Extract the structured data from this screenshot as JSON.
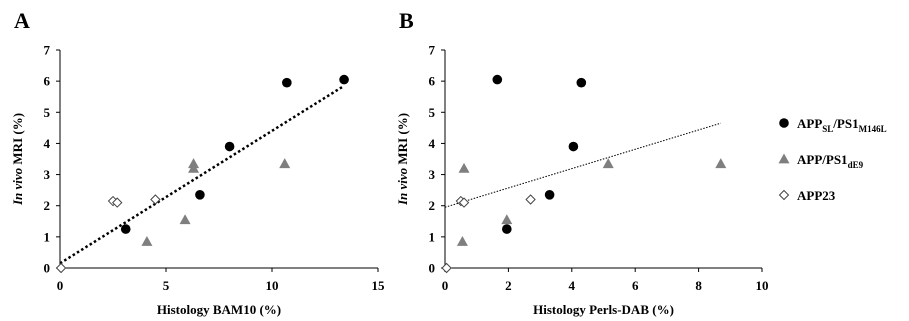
{
  "colors": {
    "circle": "#000000",
    "triangle": "#7f7f7f",
    "diamond": "#ffffff",
    "axis": "#000000"
  },
  "legend": [
    {
      "marker": "circle",
      "main": "APP",
      "sub1": "SL",
      "mid": "/PS1",
      "sub2": "M146L"
    },
    {
      "marker": "triangle",
      "main": "APP/PS1",
      "sub1": "dE9",
      "mid": "",
      "sub2": ""
    },
    {
      "marker": "diamond",
      "main": "APP23",
      "sub1": "",
      "mid": "",
      "sub2": ""
    }
  ],
  "chart_data": [
    {
      "type": "scatter",
      "panel_label": "A",
      "xlabel": "Histology BAM10 (%)",
      "ylabel_italic": "In vivo",
      "ylabel_rest": " MRI (%)",
      "xlim": [
        0,
        15
      ],
      "ylim": [
        0,
        7
      ],
      "xticks": [
        0,
        5,
        10,
        15
      ],
      "yticks": [
        0,
        1,
        2,
        3,
        4,
        5,
        6,
        7
      ],
      "trendline": {
        "style": "dotted-thick",
        "x": [
          0,
          13.4
        ],
        "y": [
          0.15,
          5.85
        ]
      },
      "series": [
        {
          "marker": "circle",
          "points": [
            [
              3.1,
              1.25
            ],
            [
              6.6,
              2.35
            ],
            [
              8.0,
              3.9
            ],
            [
              10.7,
              5.95
            ],
            [
              13.4,
              6.05
            ]
          ]
        },
        {
          "marker": "triangle",
          "points": [
            [
              4.1,
              0.85
            ],
            [
              5.9,
              1.55
            ],
            [
              6.3,
              3.2
            ],
            [
              6.3,
              3.35
            ],
            [
              10.6,
              3.35
            ]
          ]
        },
        {
          "marker": "diamond",
          "points": [
            [
              0.05,
              0.0
            ],
            [
              2.5,
              2.15
            ],
            [
              2.7,
              2.1
            ],
            [
              4.5,
              2.2
            ]
          ]
        }
      ]
    },
    {
      "type": "scatter",
      "panel_label": "B",
      "xlabel": "Histology Perls-DAB (%)",
      "ylabel_italic": "In vivo",
      "ylabel_rest": " MRI (%)",
      "xlim": [
        0,
        10
      ],
      "ylim": [
        0,
        7
      ],
      "xticks": [
        0,
        2,
        4,
        6,
        8,
        10
      ],
      "yticks": [
        0,
        1,
        2,
        3,
        4,
        5,
        6,
        7
      ],
      "trendline": {
        "style": "dotted-thin",
        "x": [
          0,
          8.7
        ],
        "y": [
          1.95,
          4.65
        ]
      },
      "series": [
        {
          "marker": "circle",
          "points": [
            [
              1.65,
              6.05
            ],
            [
              1.95,
              1.25
            ],
            [
              3.3,
              2.35
            ],
            [
              4.05,
              3.9
            ],
            [
              4.3,
              5.95
            ]
          ]
        },
        {
          "marker": "triangle",
          "points": [
            [
              0.55,
              0.85
            ],
            [
              0.6,
              3.2
            ],
            [
              1.95,
              1.55
            ],
            [
              5.15,
              3.35
            ],
            [
              8.7,
              3.35
            ]
          ]
        },
        {
          "marker": "diamond",
          "points": [
            [
              0.05,
              0.0
            ],
            [
              0.5,
              2.15
            ],
            [
              0.6,
              2.1
            ],
            [
              2.7,
              2.2
            ]
          ]
        }
      ]
    }
  ]
}
